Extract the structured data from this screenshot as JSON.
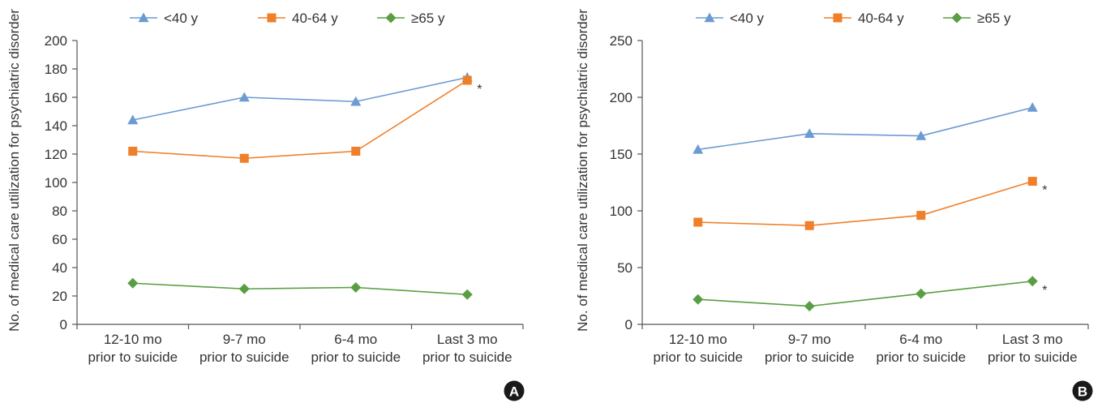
{
  "chart_data": [
    {
      "type": "line",
      "panel_label": "A",
      "title": "",
      "xlabel": "",
      "ylabel": "No. of medical care utilization for psychiatric disorder",
      "categories": [
        [
          "12-10 mo",
          "prior to suicide"
        ],
        [
          "9-7 mo",
          "prior to suicide"
        ],
        [
          "6-4 mo",
          "prior to suicide"
        ],
        [
          "Last 3 mo",
          "prior to suicide"
        ]
      ],
      "ylim": [
        0,
        200
      ],
      "yticks": [
        0,
        20,
        40,
        60,
        80,
        100,
        120,
        140,
        160,
        180,
        200
      ],
      "grid": false,
      "legend_position": "top",
      "series": [
        {
          "name": "<40 y",
          "values": [
            144,
            160,
            157,
            174
          ],
          "color": "#6b9bd2",
          "marker": "triangle",
          "significance": [
            "",
            "",
            "",
            ""
          ]
        },
        {
          "name": "40-64 y",
          "values": [
            122,
            117,
            122,
            172
          ],
          "color": "#f07f2a",
          "marker": "square",
          "significance": [
            "",
            "",
            "",
            "*"
          ]
        },
        {
          "name": "≥65 y",
          "values": [
            29,
            25,
            26,
            21
          ],
          "color": "#5a9e43",
          "marker": "diamond",
          "significance": [
            "",
            "",
            "",
            ""
          ]
        }
      ]
    },
    {
      "type": "line",
      "panel_label": "B",
      "title": "",
      "xlabel": "",
      "ylabel": "No. of medical care utilization for psychiatric disorder",
      "categories": [
        [
          "12-10 mo",
          "prior to suicide"
        ],
        [
          "9-7 mo",
          "prior to suicide"
        ],
        [
          "6-4 mo",
          "prior to suicide"
        ],
        [
          "Last 3 mo",
          "prior to suicide"
        ]
      ],
      "ylim": [
        0,
        250
      ],
      "yticks": [
        0,
        50,
        100,
        150,
        200,
        250
      ],
      "grid": false,
      "legend_position": "top",
      "series": [
        {
          "name": "<40 y",
          "values": [
            154,
            168,
            166,
            191
          ],
          "color": "#6b9bd2",
          "marker": "triangle",
          "significance": [
            "",
            "",
            "",
            ""
          ]
        },
        {
          "name": "40-64 y",
          "values": [
            90,
            87,
            96,
            126
          ],
          "color": "#f07f2a",
          "marker": "square",
          "significance": [
            "",
            "",
            "",
            "*"
          ]
        },
        {
          "name": "≥65 y",
          "values": [
            22,
            16,
            27,
            38
          ],
          "color": "#5a9e43",
          "marker": "diamond",
          "significance": [
            "",
            "",
            "",
            "*"
          ]
        }
      ]
    }
  ]
}
